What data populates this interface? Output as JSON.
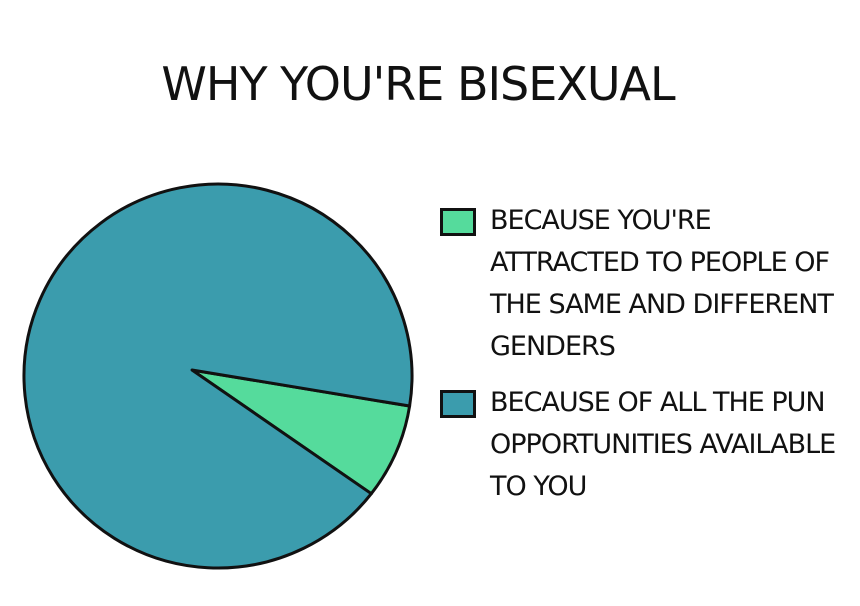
{
  "chart_data": {
    "type": "pie",
    "title": "WHY YOU'RE BISEXUAL",
    "categories": [
      "BECAUSE YOU'RE ATTRACTED TO PEOPLE OF THE SAME AND DIFFERENT GENDERS",
      "BECAUSE OF ALL THE PUN OPPORTUNITIES AVAILABLE TO YOU"
    ],
    "values": [
      8,
      92
    ],
    "colors": [
      "#55db9c",
      "#3b9cad"
    ]
  }
}
